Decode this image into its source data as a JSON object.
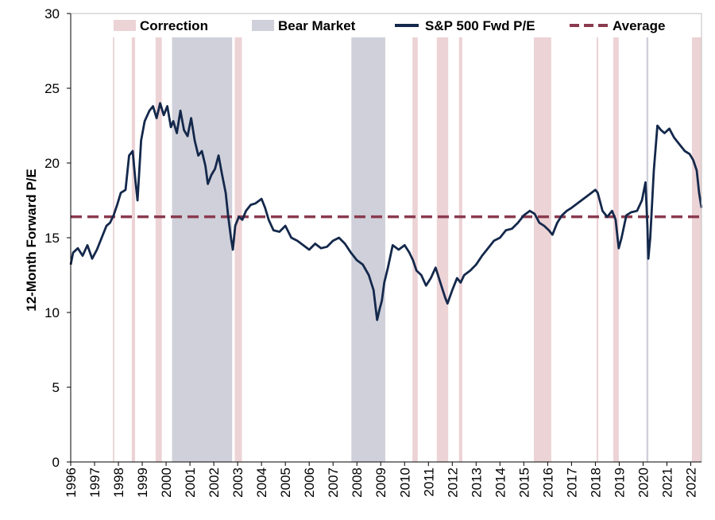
{
  "chart_data": {
    "type": "line",
    "title": "",
    "xlabel": "",
    "ylabel": "12-Month Forward P/E",
    "xlim": [
      1996.0,
      2022.45
    ],
    "ylim": [
      0,
      30
    ],
    "yticks": [
      0,
      5,
      10,
      15,
      20,
      25,
      30
    ],
    "xticks": [
      "1996",
      "1997",
      "1998",
      "1999",
      "2000",
      "2001",
      "2002",
      "2003",
      "2004",
      "2005",
      "2006",
      "2007",
      "2008",
      "2009",
      "2010",
      "2011",
      "2012",
      "2013",
      "2014",
      "2015",
      "2016",
      "2017",
      "2018",
      "2019",
      "2020",
      "2021",
      "2022"
    ],
    "grid": false,
    "legend_position": "top",
    "legend": [
      {
        "label": "Correction",
        "kind": "patch",
        "color": "#ecd3d6"
      },
      {
        "label": "Bear Market",
        "kind": "patch",
        "color": "#cfd0da"
      },
      {
        "label": "S&P 500 Fwd P/E",
        "kind": "line",
        "color": "#14284b"
      },
      {
        "label": "Average",
        "kind": "dashed",
        "color": "#8b3a4f"
      }
    ],
    "average": 16.4,
    "corrections": [
      [
        1997.77,
        1997.83
      ],
      [
        1998.56,
        1998.7
      ],
      [
        1999.56,
        1999.82
      ],
      [
        2002.88,
        2003.18
      ],
      [
        2010.33,
        2010.55
      ],
      [
        2011.35,
        2011.83
      ],
      [
        2012.28,
        2012.42
      ],
      [
        2015.42,
        2016.15
      ],
      [
        2018.05,
        2018.12
      ],
      [
        2018.75,
        2018.98
      ],
      [
        2022.05,
        2022.45
      ]
    ],
    "bear_markets": [
      [
        2000.25,
        2002.77
      ],
      [
        2007.77,
        2009.19
      ],
      [
        2020.14,
        2020.22
      ]
    ],
    "series": [
      {
        "name": "S&P 500 Fwd P/E",
        "color": "#14284b",
        "x": [
          1996.0,
          1996.1,
          1996.3,
          1996.5,
          1996.7,
          1996.9,
          1997.1,
          1997.3,
          1997.5,
          1997.65,
          1997.8,
          1997.95,
          1998.1,
          1998.3,
          1998.45,
          1998.6,
          1998.7,
          1998.8,
          1998.95,
          1999.1,
          1999.3,
          1999.45,
          1999.6,
          1999.75,
          1999.9,
          2000.05,
          2000.2,
          2000.3,
          2000.45,
          2000.6,
          2000.75,
          2000.9,
          2001.05,
          2001.2,
          2001.35,
          2001.5,
          2001.65,
          2001.75,
          2001.9,
          2002.05,
          2002.2,
          2002.35,
          2002.5,
          2002.6,
          2002.72,
          2002.8,
          2002.9,
          2003.05,
          2003.2,
          2003.35,
          2003.55,
          2003.75,
          2004.0,
          2004.15,
          2004.3,
          2004.5,
          2004.75,
          2005.0,
          2005.25,
          2005.5,
          2005.75,
          2006.0,
          2006.25,
          2006.5,
          2006.75,
          2007.0,
          2007.25,
          2007.5,
          2007.75,
          2008.0,
          2008.25,
          2008.5,
          2008.7,
          2008.85,
          2008.95,
          2009.05,
          2009.15,
          2009.3,
          2009.5,
          2009.75,
          2010.0,
          2010.2,
          2010.35,
          2010.5,
          2010.7,
          2010.9,
          2011.1,
          2011.3,
          2011.5,
          2011.7,
          2011.8,
          2012.0,
          2012.2,
          2012.35,
          2012.5,
          2012.75,
          2013.0,
          2013.25,
          2013.5,
          2013.75,
          2014.0,
          2014.25,
          2014.5,
          2014.75,
          2015.0,
          2015.25,
          2015.45,
          2015.65,
          2015.85,
          2016.05,
          2016.2,
          2016.4,
          2016.6,
          2016.8,
          2017.0,
          2017.25,
          2017.5,
          2017.75,
          2018.0,
          2018.1,
          2018.3,
          2018.5,
          2018.7,
          2018.85,
          2018.98,
          2019.1,
          2019.3,
          2019.5,
          2019.75,
          2019.95,
          2020.1,
          2020.18,
          2020.22,
          2020.3,
          2020.45,
          2020.6,
          2020.75,
          2020.9,
          2021.1,
          2021.3,
          2021.5,
          2021.75,
          2021.95,
          2022.1,
          2022.25,
          2022.35,
          2022.45
        ],
        "values": [
          13.2,
          14.0,
          14.3,
          13.8,
          14.5,
          13.6,
          14.2,
          15.0,
          15.8,
          16.0,
          16.5,
          17.2,
          18.0,
          18.2,
          20.5,
          20.8,
          19.0,
          17.5,
          21.5,
          22.8,
          23.5,
          23.8,
          23.0,
          24.0,
          23.2,
          23.8,
          22.4,
          22.8,
          22.0,
          23.5,
          22.2,
          21.8,
          23.0,
          21.5,
          20.5,
          20.8,
          19.8,
          18.6,
          19.2,
          19.6,
          20.5,
          19.2,
          18.0,
          16.5,
          15.0,
          14.2,
          15.8,
          16.4,
          16.2,
          16.8,
          17.2,
          17.3,
          17.6,
          17.0,
          16.2,
          15.5,
          15.4,
          15.8,
          15.0,
          14.8,
          14.5,
          14.2,
          14.6,
          14.3,
          14.4,
          14.8,
          15.0,
          14.6,
          14.0,
          13.5,
          13.2,
          12.5,
          11.5,
          9.5,
          10.2,
          10.8,
          12.0,
          13.0,
          14.5,
          14.2,
          14.5,
          14.0,
          13.5,
          12.8,
          12.5,
          11.8,
          12.3,
          13.0,
          12.0,
          11.0,
          10.6,
          11.5,
          12.3,
          12.0,
          12.5,
          12.8,
          13.2,
          13.8,
          14.3,
          14.8,
          15.0,
          15.5,
          15.6,
          16.0,
          16.5,
          16.8,
          16.6,
          16.0,
          15.8,
          15.5,
          15.2,
          16.0,
          16.5,
          16.8,
          17.0,
          17.3,
          17.6,
          17.9,
          18.2,
          18.0,
          16.8,
          16.4,
          16.8,
          16.2,
          14.3,
          15.0,
          16.5,
          16.7,
          16.8,
          17.5,
          18.7,
          15.8,
          13.6,
          15.0,
          19.5,
          22.5,
          22.2,
          22.0,
          22.3,
          21.7,
          21.3,
          20.8,
          20.6,
          20.2,
          19.5,
          18.0,
          17.0
        ]
      }
    ]
  }
}
